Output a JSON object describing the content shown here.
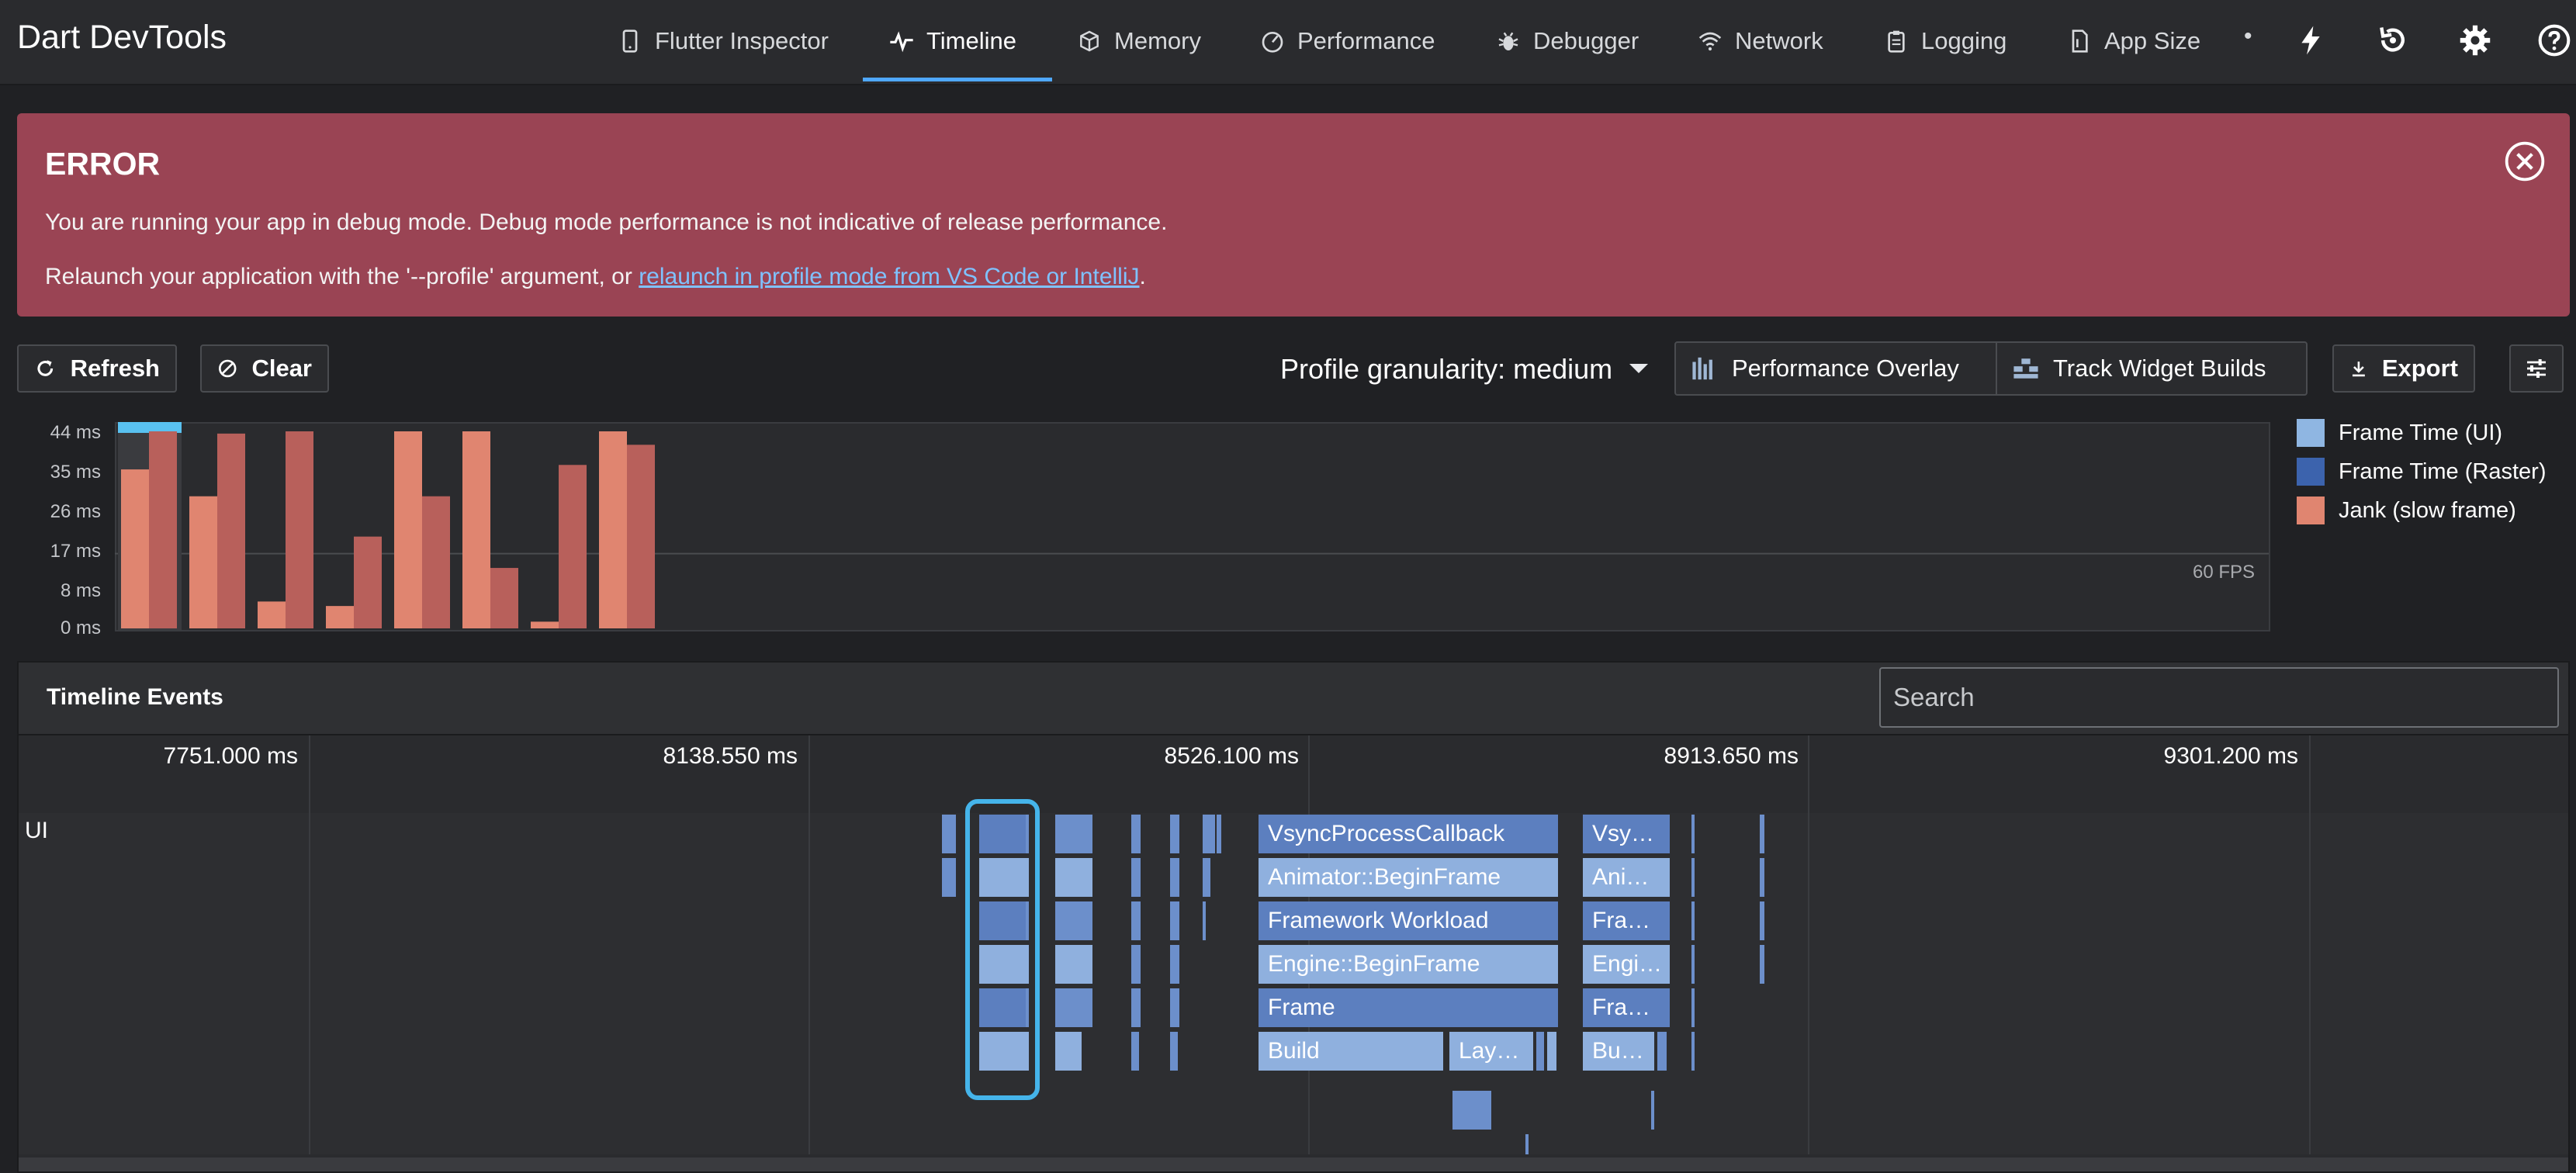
{
  "app": {
    "title": "Dart DevTools"
  },
  "nav": {
    "tabs": [
      {
        "label": "Flutter Inspector",
        "icon": "phone-icon"
      },
      {
        "label": "Timeline",
        "icon": "pulse-icon",
        "active": true
      },
      {
        "label": "Memory",
        "icon": "cube-icon"
      },
      {
        "label": "Performance",
        "icon": "gauge-icon"
      },
      {
        "label": "Debugger",
        "icon": "bug-icon"
      },
      {
        "label": "Network",
        "icon": "wifi-icon"
      },
      {
        "label": "Logging",
        "icon": "clipboard-icon"
      },
      {
        "label": "App Size",
        "icon": "file-icon"
      }
    ],
    "dot": "•",
    "actions": [
      "hot-reload-icon",
      "hot-restart-icon",
      "settings-icon",
      "help-icon"
    ]
  },
  "banner": {
    "title": "ERROR",
    "line1": "You are running your app in debug mode. Debug mode performance is not indicative of release performance.",
    "line2_prefix": "Relaunch your application with the '--profile' argument, or ",
    "line2_link": "relaunch in profile mode from VS Code or IntelliJ",
    "line2_suffix": "."
  },
  "toolbar": {
    "refresh": "Refresh",
    "clear": "Clear",
    "granularity": "Profile granularity: medium",
    "performance_overlay": "Performance Overlay",
    "track_widget_builds": "Track Widget Builds",
    "export": "Export"
  },
  "colors": {
    "ui_frame": "#8fb6e2",
    "raster_frame": "#3c63ad",
    "jank_ui": "#e08570",
    "jank_raster": "#b8605b",
    "selection": "#45b4ea",
    "error_banner": "#9a4454"
  },
  "chart_data": {
    "type": "bar",
    "y_unit": "ms",
    "y_ticks": [
      "44 ms",
      "35 ms",
      "26 ms",
      "17 ms",
      "8 ms",
      "0 ms"
    ],
    "ylim": [
      0,
      44
    ],
    "target_line_label": "60 FPS",
    "target_line_value": 16.7,
    "series": [
      {
        "name": "Frame Time (UI)",
        "values": [
          35.5,
          29.5,
          6,
          5,
          44,
          44,
          1.5,
          44
        ]
      },
      {
        "name": "Frame Time (Raster)",
        "values": [
          44,
          43.5,
          44,
          20.5,
          29.5,
          13.5,
          36.5,
          41
        ]
      }
    ],
    "legend": [
      "Frame Time (UI)",
      "Frame Time (Raster)",
      "Jank (slow frame)"
    ],
    "selected_frame": 0
  },
  "timeline": {
    "title": "Timeline Events",
    "search_placeholder": "Search",
    "ticks": [
      "7751.000 ms",
      "8138.550 ms",
      "8526.100 ms",
      "8913.650 ms",
      "9301.200 ms"
    ],
    "row_label": "UI",
    "events_main": [
      "VsyncProcessCallback",
      "Animator::BeginFrame",
      "Framework Workload",
      "Engine::BeginFrame",
      "Frame",
      "Build",
      "Lay…"
    ],
    "events_second": [
      "Vsy…",
      "Ani…",
      "Fra…",
      "Engi…",
      "Fra…",
      "Bu…"
    ]
  }
}
